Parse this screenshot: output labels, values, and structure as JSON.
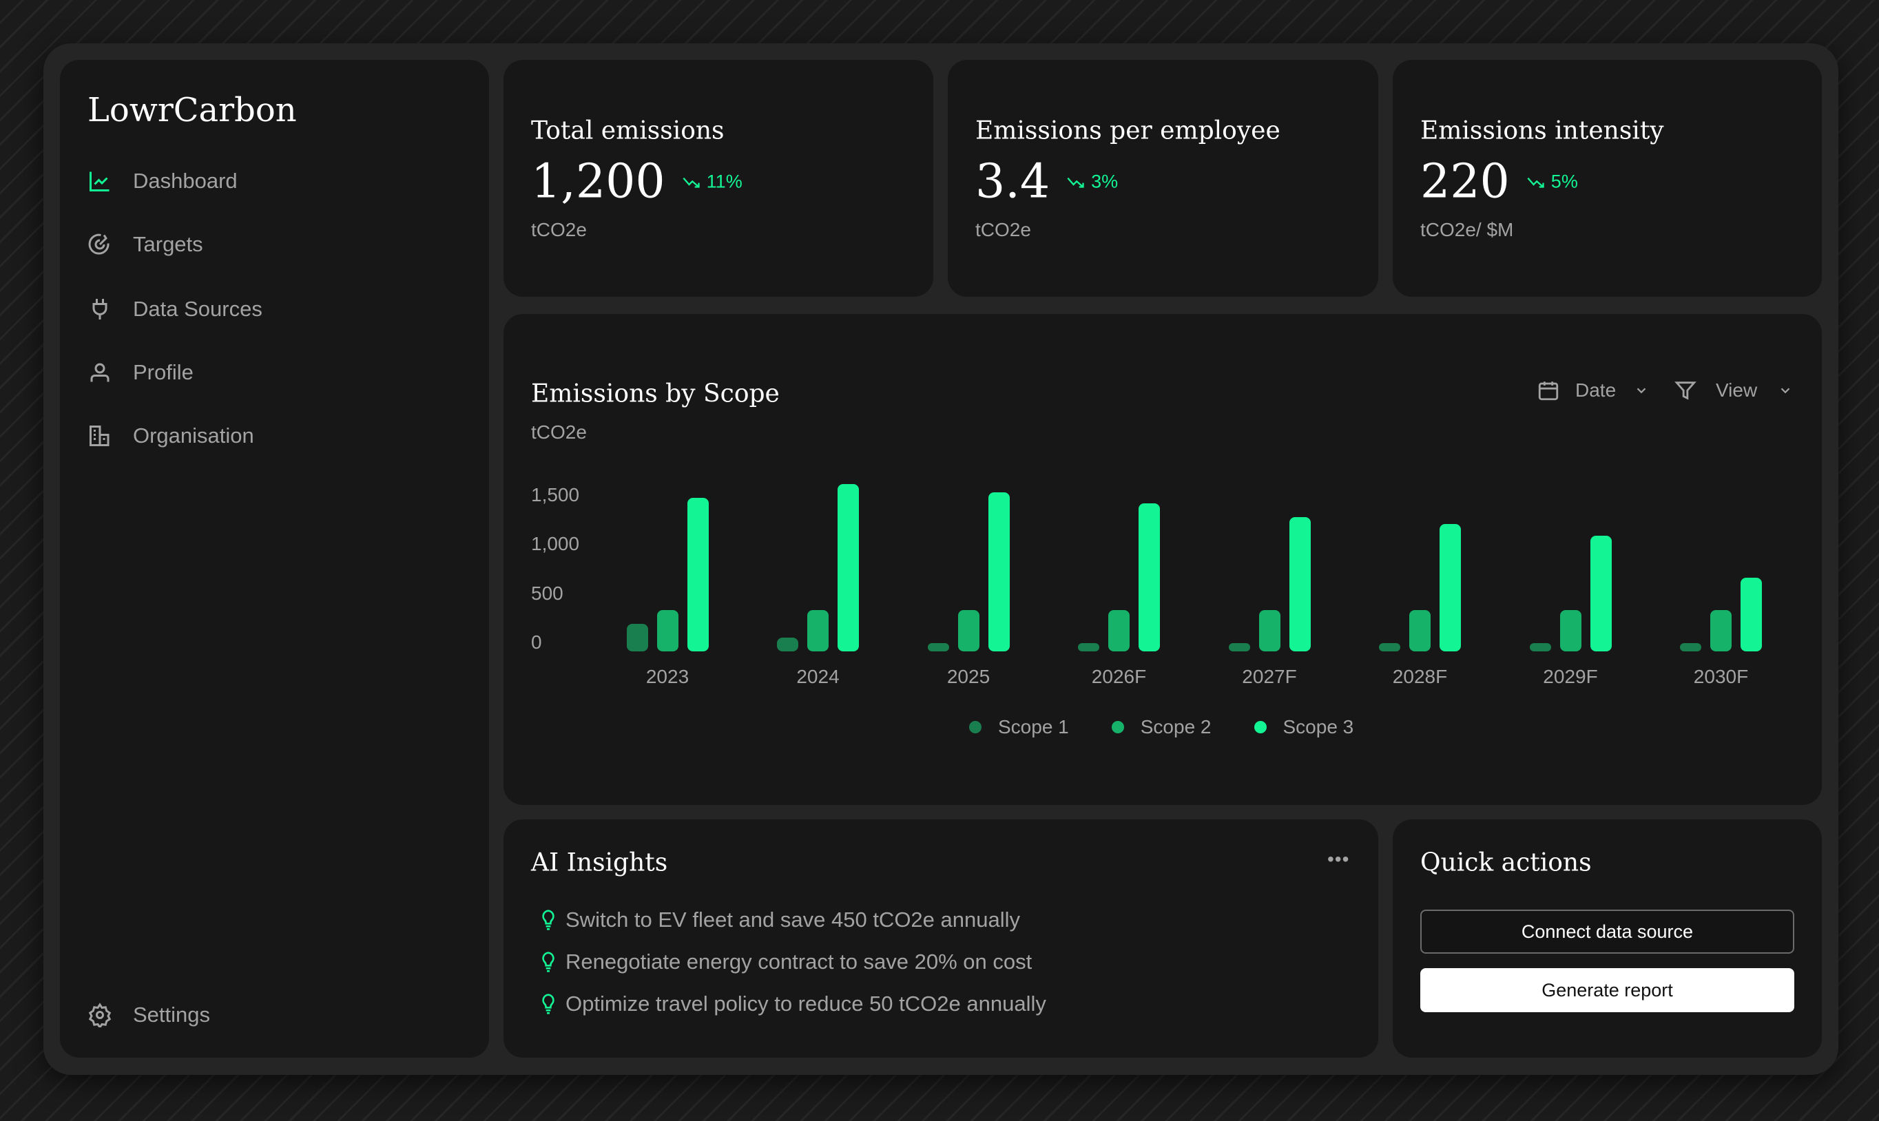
{
  "brand": "LowrCarbon",
  "sidebar": {
    "items": [
      {
        "label": "Dashboard",
        "icon": "line-chart-icon",
        "active": true
      },
      {
        "label": "Targets",
        "icon": "target-icon"
      },
      {
        "label": "Data Sources",
        "icon": "plug-icon"
      },
      {
        "label": "Profile",
        "icon": "user-icon"
      },
      {
        "label": "Organisation",
        "icon": "building-icon"
      }
    ],
    "settings": "Settings"
  },
  "kpis": [
    {
      "title": "Total emissions",
      "value": "1,200",
      "delta": "11%",
      "unit": "tCO2e"
    },
    {
      "title": "Emissions per employee",
      "value": "3.4",
      "delta": "3%",
      "unit": "tCO2e"
    },
    {
      "title": "Emissions intensity",
      "value": "220",
      "delta": "5%",
      "unit": "tCO2e/ $M"
    }
  ],
  "chart": {
    "title": "Emissions by Scope",
    "unit": "tCO2e",
    "date_label": "Date",
    "view_label": "View"
  },
  "chart_data": {
    "type": "bar",
    "title": "Emissions by Scope",
    "ylabel": "tCO2e",
    "categories": [
      "2023",
      "2024",
      "2025",
      "2026F",
      "2027F",
      "2028F",
      "2029F",
      "2030F"
    ],
    "yticks": [
      "0",
      "500",
      "1,000",
      "1,500"
    ],
    "ylim": [
      0,
      1500
    ],
    "grid": false,
    "legend": "bottom",
    "series": [
      {
        "name": "Scope 1",
        "color": "#1a7f4f",
        "values": [
          280,
          140,
          80,
          80,
          80,
          80,
          80,
          80
        ]
      },
      {
        "name": "Scope 2",
        "color": "#17b26a",
        "values": [
          420,
          420,
          420,
          420,
          420,
          420,
          420,
          420
        ]
      },
      {
        "name": "Scope 3",
        "color": "#13f595",
        "values": [
          1560,
          1700,
          1620,
          1510,
          1370,
          1300,
          1175,
          750
        ]
      }
    ]
  },
  "insights": {
    "title": "AI Insights",
    "items": [
      "Switch to EV fleet and save 450 tCO2e annually",
      "Renegotiate energy contract to save 20% on cost",
      "Optimize travel policy to reduce 50 tCO2e annually"
    ]
  },
  "quick_actions": {
    "title": "Quick actions",
    "connect": "Connect data source",
    "generate": "Generate report"
  },
  "colors": {
    "accent": "#13f595",
    "card": "#171717",
    "frame": "#252525"
  }
}
